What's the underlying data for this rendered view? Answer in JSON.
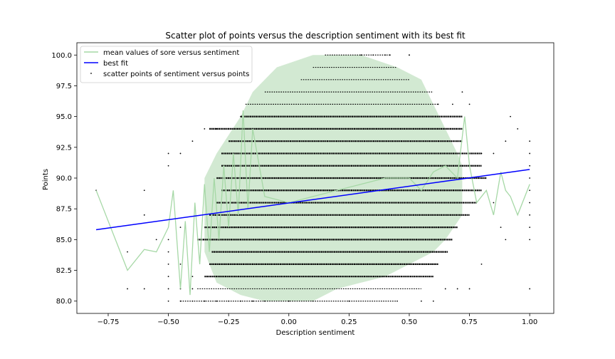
{
  "chart_data": {
    "type": "scatter",
    "title": "Scatter plot of points versus the description sentiment with its best fit",
    "xlabel": "Description sentiment",
    "ylabel": "Points",
    "xlim": [
      -0.88,
      1.1
    ],
    "ylim": [
      79.0,
      101.0
    ],
    "xticks": [
      -0.75,
      -0.5,
      -0.25,
      0.0,
      0.25,
      0.5,
      0.75,
      1.0
    ],
    "xtick_labels": [
      "−0.75",
      "−0.50",
      "−0.25",
      "0.00",
      "0.25",
      "0.50",
      "0.75",
      "1.00"
    ],
    "yticks": [
      80.0,
      82.5,
      85.0,
      87.5,
      90.0,
      92.5,
      95.0,
      97.5,
      100.0
    ],
    "ytick_labels": [
      "80.0",
      "82.5",
      "85.0",
      "87.5",
      "90.0",
      "92.5",
      "95.0",
      "97.5",
      "100.0"
    ],
    "grid": false,
    "legend_position": "top-left",
    "series": [
      {
        "name": "mean values of sore versus sentiment",
        "kind": "line",
        "color": "#a6d8a6",
        "x": [
          -0.8,
          -0.67,
          -0.6,
          -0.55,
          -0.5,
          -0.48,
          -0.45,
          -0.43,
          -0.41,
          -0.39,
          -0.37,
          -0.35,
          -0.33,
          -0.31,
          -0.29,
          -0.27,
          -0.25,
          -0.23,
          -0.21,
          -0.19,
          -0.17,
          -0.15,
          -0.1,
          0.0,
          0.1,
          0.2,
          0.3,
          0.4,
          0.5,
          0.55,
          0.6,
          0.65,
          0.7,
          0.73,
          0.75,
          0.78,
          0.82,
          0.85,
          0.88,
          0.9,
          0.92,
          0.95,
          1.0
        ],
        "y": [
          89.0,
          82.5,
          84.2,
          84.0,
          86.0,
          89.0,
          81.0,
          86.5,
          80.5,
          88.0,
          83.0,
          89.5,
          84.0,
          90.0,
          85.0,
          91.0,
          86.0,
          92.0,
          87.0,
          95.5,
          87.5,
          94.0,
          88.5,
          88.0,
          88.5,
          89.0,
          89.5,
          90.0,
          90.0,
          89.0,
          90.5,
          91.0,
          90.0,
          95.0,
          91.0,
          88.0,
          89.0,
          87.0,
          90.5,
          89.0,
          88.5,
          87.0,
          89.5
        ]
      },
      {
        "name": "best fit",
        "kind": "line",
        "color": "#0000ff",
        "x": [
          -0.8,
          1.0
        ],
        "y": [
          85.8,
          90.7
        ]
      },
      {
        "name": "scatter points of sentiment versus points",
        "kind": "scatter",
        "color": "#000000",
        "x": [
          -0.8,
          -0.67,
          -0.67,
          -0.6,
          -0.6,
          -0.6,
          -0.55,
          -0.5,
          -0.5,
          -0.5,
          -0.5,
          -0.5,
          -0.5,
          -0.5,
          -0.5,
          -0.45,
          -0.45,
          -0.45,
          -0.45,
          -0.45,
          -0.4,
          -0.4,
          -0.4,
          -0.4,
          -0.35,
          -0.35,
          -0.3,
          -0.3,
          -0.25,
          -0.25,
          -0.2,
          -0.2,
          -0.15,
          -0.1,
          0.0,
          0.1,
          0.25,
          0.3,
          0.35,
          0.4,
          0.45,
          0.5,
          0.55,
          0.6,
          0.62,
          0.65,
          0.68,
          0.7,
          0.72,
          0.75,
          0.75,
          0.8,
          0.8,
          0.85,
          0.85,
          0.88,
          0.9,
          0.9,
          0.92,
          0.95,
          1.0,
          1.0,
          1.0,
          1.0,
          1.0,
          1.0,
          1.0,
          1.0,
          1.0,
          1.0,
          0.42,
          0.5
        ],
        "y": [
          89,
          84,
          81,
          89,
          87,
          81,
          85,
          80,
          81,
          82,
          83,
          84,
          85,
          91,
          92,
          80,
          81,
          83,
          86,
          92,
          80,
          81,
          82,
          93,
          80,
          94,
          80,
          94,
          80,
          94,
          80,
          95,
          80,
          80,
          80,
          80,
          80,
          100,
          100,
          100,
          80,
          100,
          80,
          80,
          96,
          81,
          96,
          81,
          97,
          81,
          96,
          83,
          92,
          88,
          92,
          86,
          85,
          93,
          95,
          94,
          81,
          85,
          86,
          87,
          88,
          89,
          90,
          91,
          92,
          93,
          100,
          100
        ]
      }
    ]
  }
}
